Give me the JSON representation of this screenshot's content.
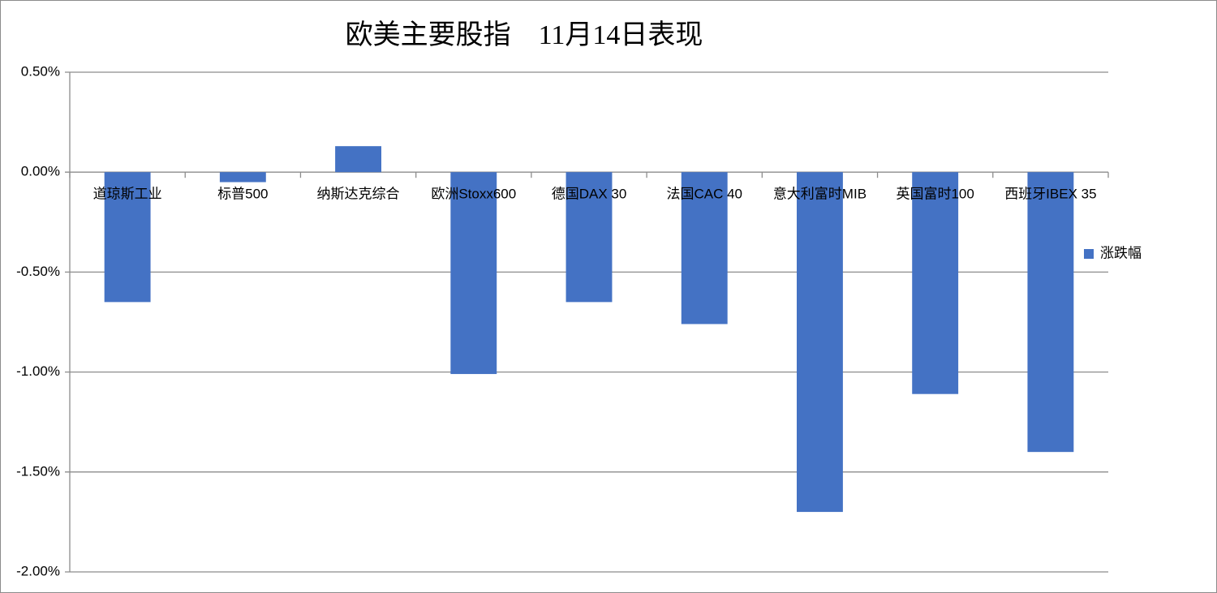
{
  "chart_data": {
    "type": "bar",
    "title": "欧美主要股指　11月14日表现",
    "categories": [
      "道琼斯工业",
      "标普500",
      "纳斯达克综合",
      "欧洲Stoxx600",
      "德国DAX 30",
      "法国CAC 40",
      "意大利富时MIB",
      "英国富时100",
      "西班牙IBEX 35"
    ],
    "series": [
      {
        "name": "涨跌幅",
        "color": "#4472c4",
        "values": [
          -0.65,
          -0.05,
          0.13,
          -1.01,
          -0.65,
          -0.76,
          -1.7,
          -1.11,
          -1.4
        ]
      }
    ],
    "ylim": [
      -2.0,
      0.5
    ],
    "yticks": [
      {
        "value": -2.0,
        "label": "-2.00%"
      },
      {
        "value": -1.5,
        "label": "-1.50%"
      },
      {
        "value": -1.0,
        "label": "-1.00%"
      },
      {
        "value": -0.5,
        "label": "-0.50%"
      },
      {
        "value": 0,
        "label": "0.00%"
      },
      {
        "value": 0.5,
        "label": "0.50%"
      }
    ],
    "grid": true,
    "legend": "right"
  }
}
